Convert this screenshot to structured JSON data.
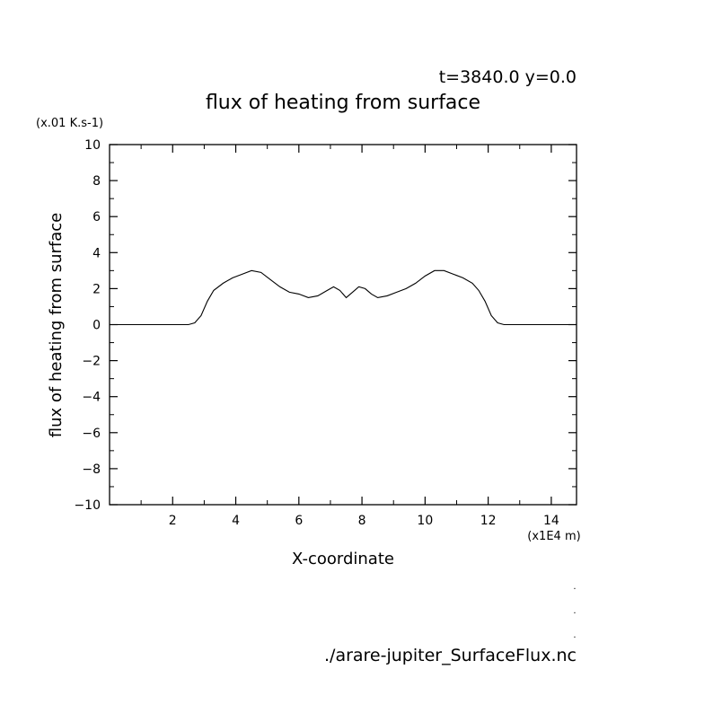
{
  "chart_data": {
    "type": "line",
    "header": "t=3840.0 y=0.0",
    "title": "flux of heating from surface",
    "ylabel": "flux of heating from surface",
    "yunit": "(x.01 K.s-1)",
    "xlabel": "X-coordinate",
    "xunit": "(x1E4 m)",
    "xlim": [
      0,
      14.8
    ],
    "ylim": [
      -10,
      10
    ],
    "xticks": [
      2,
      4,
      6,
      8,
      10,
      12,
      14
    ],
    "yticks": [
      -10,
      -8,
      -6,
      -4,
      -2,
      0,
      2,
      4,
      6,
      8,
      10
    ],
    "grid": false,
    "series": [
      {
        "x": [
          0,
          2.5,
          2.7,
          2.9,
          3.1,
          3.3,
          3.6,
          3.9,
          4.2,
          4.5,
          4.8,
          5.1,
          5.4,
          5.7,
          6.0,
          6.3,
          6.6,
          6.9,
          7.1,
          7.3,
          7.5,
          7.7,
          7.9,
          8.1,
          8.3,
          8.5,
          8.8,
          9.1,
          9.4,
          9.7,
          10.0,
          10.3,
          10.6,
          10.9,
          11.2,
          11.5,
          11.7,
          11.9,
          12.1,
          12.3,
          12.5,
          12.8,
          14.8
        ],
        "y": [
          0,
          0,
          0.1,
          0.5,
          1.3,
          1.9,
          2.3,
          2.6,
          2.8,
          3.0,
          2.9,
          2.5,
          2.1,
          1.8,
          1.7,
          1.5,
          1.6,
          1.9,
          2.1,
          1.9,
          1.5,
          1.8,
          2.1,
          2.0,
          1.7,
          1.5,
          1.6,
          1.8,
          2.0,
          2.3,
          2.7,
          3.0,
          3.0,
          2.8,
          2.6,
          2.3,
          1.9,
          1.3,
          0.5,
          0.1,
          0,
          0,
          0
        ]
      }
    ]
  },
  "footer": {
    "marks": [
      ".",
      ".",
      "."
    ],
    "filename": "./arare-jupiter_SurfaceFlux.nc"
  }
}
